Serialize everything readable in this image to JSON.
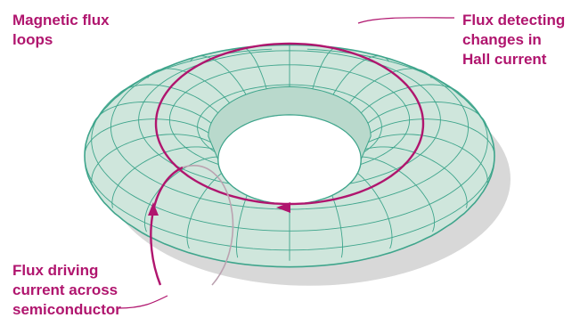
{
  "title": {
    "lines": [
      "Magnetic flux",
      "loops"
    ]
  },
  "callouts": {
    "hall": {
      "lines": [
        "Flux detecting",
        "changes in",
        "Hall current"
      ]
    },
    "driving": {
      "lines": [
        "Flux driving",
        "current across",
        "semiconductor"
      ]
    }
  },
  "colors": {
    "accent": "#b0156e",
    "torus_fill": "#cfe6dc",
    "torus_lines": "#3fa58c",
    "shadow": "#d8d8d8"
  },
  "icons": [
    "arrowhead-icon"
  ]
}
